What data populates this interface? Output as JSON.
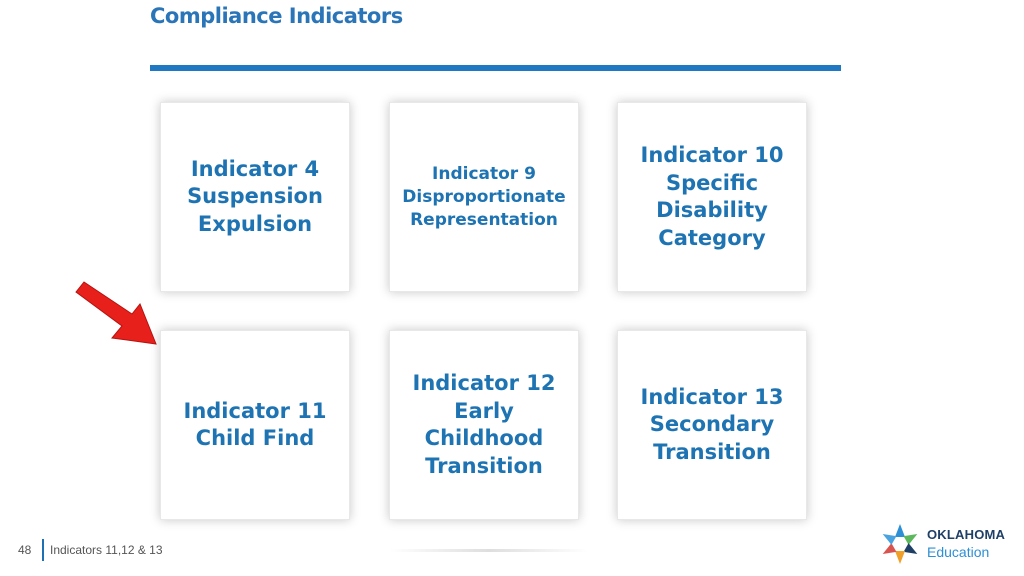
{
  "page": {
    "title": "Compliance Indicators"
  },
  "cards": [
    {
      "label": "Indicator 4\nSuspension\nExpulsion"
    },
    {
      "label": "Indicator 9\nDisproportionate\nRepresentation"
    },
    {
      "label": "Indicator 10\nSpecific\nDisability\nCategory"
    },
    {
      "label": "Indicator 11\nChild Find"
    },
    {
      "label": "Indicator 12\nEarly\nChildhood\nTransition"
    },
    {
      "label": "Indicator 13\nSecondary\nTransition"
    }
  ],
  "arrow": {
    "icon": "red-arrow-icon",
    "color": "#e8201c",
    "points_to": "Indicator 11"
  },
  "footer": {
    "slide_number": "48",
    "text": "Indicators 11,12 & 13"
  },
  "logo": {
    "line1": "OKLAHOMA",
    "line2": "Education",
    "icon": "oklahoma-star-icon"
  },
  "colors": {
    "title": "#2a74b8",
    "rule": "#1f78c1",
    "card_text": "#1e73b2"
  }
}
